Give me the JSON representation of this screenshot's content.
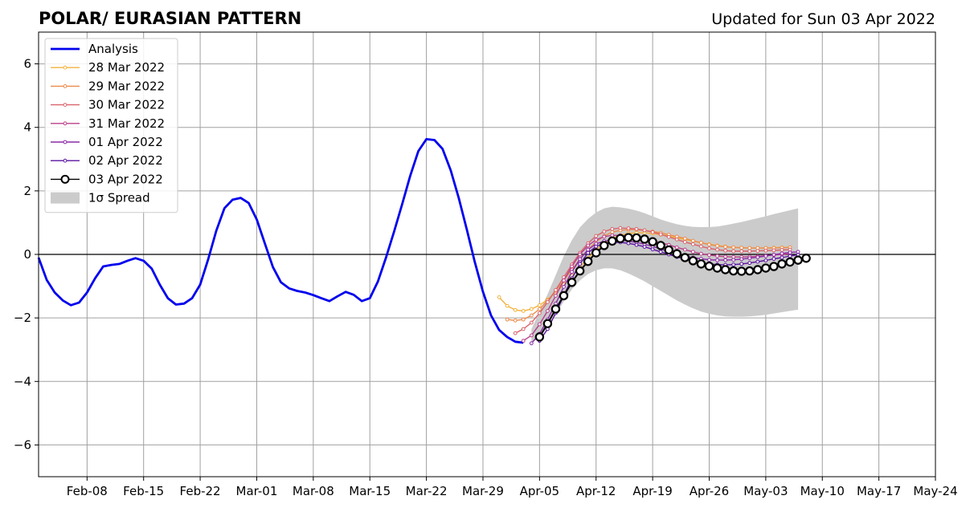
{
  "header": {
    "title": "POLAR/ EURASIAN  PATTERN",
    "updated": "Updated for Sun 03 Apr 2022"
  },
  "chart_data": {
    "type": "line",
    "title": "POLAR/ EURASIAN  PATTERN",
    "xlabel": "",
    "ylabel": "",
    "ylim": [
      -7,
      7
    ],
    "yticks": [
      -6,
      -4,
      -2,
      0,
      2,
      4,
      6
    ],
    "ytick_labels": [
      "−6",
      "−4",
      "−2",
      "0",
      "2",
      "4",
      "6"
    ],
    "xlim": [
      "2022-02-02",
      "2022-05-24"
    ],
    "xticks": [
      "2022-02-08",
      "2022-02-15",
      "2022-02-22",
      "2022-03-01",
      "2022-03-08",
      "2022-03-15",
      "2022-03-22",
      "2022-03-29",
      "2022-04-05",
      "2022-04-12",
      "2022-04-19",
      "2022-04-26",
      "2022-05-03",
      "2022-05-10",
      "2022-05-17",
      "2022-05-24"
    ],
    "xtick_labels": [
      "Feb-08",
      "Feb-15",
      "Feb-22",
      "Mar-01",
      "Mar-08",
      "Mar-15",
      "Mar-22",
      "Mar-29",
      "Apr-05",
      "Apr-12",
      "Apr-19",
      "Apr-26",
      "May-03",
      "May-10",
      "May-17",
      "May-24"
    ],
    "grid": true,
    "legend_position": "top-left",
    "series": [
      {
        "name": "Analysis",
        "color": "#0000ee",
        "start": "2022-02-02",
        "values": [
          -0.1,
          -0.8,
          -1.2,
          -1.45,
          -1.6,
          -1.52,
          -1.2,
          -0.75,
          -0.38,
          -0.33,
          -0.3,
          -0.2,
          -0.12,
          -0.2,
          -0.45,
          -0.95,
          -1.38,
          -1.58,
          -1.55,
          -1.38,
          -0.95,
          -0.15,
          0.75,
          1.45,
          1.72,
          1.78,
          1.62,
          1.1,
          0.35,
          -0.4,
          -0.88,
          -1.07,
          -1.15,
          -1.2,
          -1.28,
          -1.38,
          -1.47,
          -1.32,
          -1.18,
          -1.27,
          -1.47,
          -1.38,
          -0.85,
          -0.1,
          0.72,
          1.58,
          2.48,
          3.25,
          3.63,
          3.6,
          3.32,
          2.65,
          1.78,
          0.78,
          -0.25,
          -1.18,
          -1.92,
          -2.38,
          -2.6,
          -2.75,
          -2.78
        ]
      },
      {
        "name": "28 Mar 2022",
        "color": "#f2b23c",
        "start": "2022-03-31",
        "values": [
          -1.35,
          -1.62,
          -1.75,
          -1.78,
          -1.72,
          -1.6,
          -1.42,
          -1.2,
          -0.95,
          -0.68,
          -0.4,
          -0.12,
          0.15,
          0.35,
          0.5,
          0.6,
          0.66,
          0.68,
          0.68,
          0.66,
          0.62,
          0.58,
          0.52,
          0.47,
          0.42,
          0.37,
          0.32,
          0.28,
          0.25,
          0.22,
          0.21,
          0.2,
          0.2,
          0.2,
          0.21,
          0.22,
          0.22
        ]
      },
      {
        "name": "29 Mar 2022",
        "color": "#ec8b4c",
        "start": "2022-04-01",
        "values": [
          -2.05,
          -2.08,
          -2.05,
          -1.92,
          -1.72,
          -1.45,
          -1.15,
          -0.82,
          -0.48,
          -0.15,
          0.15,
          0.4,
          0.58,
          0.7,
          0.76,
          0.78,
          0.78,
          0.75,
          0.72,
          0.68,
          0.62,
          0.56,
          0.5,
          0.43,
          0.37,
          0.31,
          0.27,
          0.24,
          0.22,
          0.21,
          0.2,
          0.2,
          0.2,
          0.2,
          0.21,
          0.22
        ]
      },
      {
        "name": "30 Mar 2022",
        "color": "#d9636b",
        "start": "2022-04-02",
        "values": [
          -2.48,
          -2.35,
          -2.15,
          -1.85,
          -1.5,
          -1.12,
          -0.72,
          -0.32,
          0.05,
          0.35,
          0.58,
          0.72,
          0.8,
          0.83,
          0.82,
          0.8,
          0.76,
          0.7,
          0.63,
          0.55,
          0.47,
          0.39,
          0.32,
          0.25,
          0.19,
          0.15,
          0.12,
          0.1,
          0.1,
          0.1,
          0.11,
          0.12,
          0.13,
          0.14,
          0.15
        ]
      },
      {
        "name": "31 Mar 2022",
        "color": "#b93f8a",
        "start": "2022-04-03",
        "values": [
          -2.72,
          -2.55,
          -2.2,
          -1.78,
          -1.3,
          -0.82,
          -0.38,
          0.0,
          0.28,
          0.46,
          0.56,
          0.6,
          0.6,
          0.58,
          0.55,
          0.5,
          0.44,
          0.37,
          0.3,
          0.22,
          0.15,
          0.08,
          0.02,
          -0.02,
          -0.05,
          -0.07,
          -0.08,
          -0.08,
          -0.07,
          -0.06,
          -0.04,
          -0.02,
          0.0,
          0.02
        ]
      },
      {
        "name": "01 Apr 2022",
        "color": "#8b2aa6",
        "start": "2022-04-04",
        "values": [
          -2.8,
          -2.5,
          -2.05,
          -1.55,
          -1.02,
          -0.55,
          -0.15,
          0.15,
          0.33,
          0.42,
          0.45,
          0.45,
          0.42,
          0.38,
          0.32,
          0.25,
          0.17,
          0.09,
          0.02,
          -0.05,
          -0.1,
          -0.14,
          -0.17,
          -0.18,
          -0.18,
          -0.17,
          -0.15,
          -0.12,
          -0.09,
          -0.05,
          -0.01,
          0.03,
          0.06,
          0.08
        ]
      },
      {
        "name": "02 Apr 2022",
        "color": "#5a12a0",
        "start": "2022-04-05",
        "values": [
          -2.72,
          -2.35,
          -1.85,
          -1.3,
          -0.75,
          -0.3,
          0.05,
          0.25,
          0.35,
          0.38,
          0.38,
          0.35,
          0.3,
          0.24,
          0.16,
          0.08,
          0.0,
          -0.08,
          -0.15,
          -0.21,
          -0.26,
          -0.3,
          -0.32,
          -0.33,
          -0.32,
          -0.3,
          -0.27,
          -0.23,
          -0.19,
          -0.14,
          -0.1,
          -0.05,
          -0.01
        ]
      },
      {
        "name": "03 Apr 2022",
        "color": "#000000",
        "start": "2022-04-05",
        "values": [
          -2.6,
          -2.18,
          -1.72,
          -1.3,
          -0.88,
          -0.52,
          -0.22,
          0.05,
          0.28,
          0.42,
          0.5,
          0.53,
          0.52,
          0.48,
          0.4,
          0.28,
          0.14,
          0.02,
          -0.1,
          -0.2,
          -0.3,
          -0.37,
          -0.43,
          -0.48,
          -0.52,
          -0.53,
          -0.52,
          -0.48,
          -0.43,
          -0.38,
          -0.3,
          -0.24,
          -0.18,
          -0.12
        ]
      }
    ],
    "spread": {
      "name": "1σ Spread",
      "color": "#cbcbcb",
      "start": "2022-04-04",
      "upper": [
        -2.35,
        -1.8,
        -1.25,
        -0.65,
        -0.05,
        0.45,
        0.85,
        1.12,
        1.32,
        1.45,
        1.5,
        1.48,
        1.44,
        1.38,
        1.3,
        1.2,
        1.1,
        1.02,
        0.95,
        0.9,
        0.87,
        0.86,
        0.86,
        0.88,
        0.92,
        0.97,
        1.02,
        1.08,
        1.14,
        1.2,
        1.27,
        1.33,
        1.39,
        1.45
      ],
      "lower": [
        -2.8,
        -2.62,
        -2.3,
        -1.9,
        -1.48,
        -1.1,
        -0.82,
        -0.62,
        -0.5,
        -0.44,
        -0.44,
        -0.5,
        -0.6,
        -0.72,
        -0.85,
        -1.0,
        -1.15,
        -1.3,
        -1.45,
        -1.58,
        -1.7,
        -1.8,
        -1.87,
        -1.92,
        -1.95,
        -1.96,
        -1.96,
        -1.95,
        -1.93,
        -1.9,
        -1.86,
        -1.82,
        -1.78,
        -1.74
      ]
    }
  }
}
